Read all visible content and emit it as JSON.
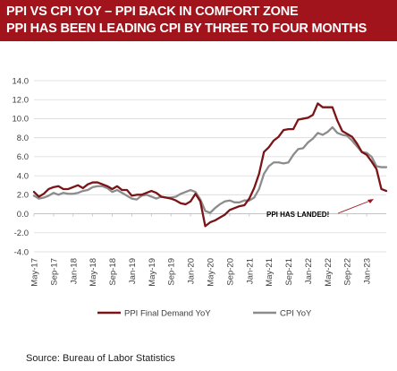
{
  "header": {
    "line1": "PPI VS CPI YOY – PPI BACK IN COMFORT ZONE",
    "line2": "PPI HAS BEEN LEADING CPI BY  THREE TO FOUR MONTHS",
    "bg_color": "#a1141b",
    "text_color": "#ffffff"
  },
  "source": "Source:  Bureau of Labor Statistics",
  "chart_data": {
    "type": "line",
    "title": "PPI VS CPI YOY – PPI BACK IN COMFORT ZONE",
    "ylim": [
      -4.0,
      14.0
    ],
    "yticks": [
      "-4.0",
      "-2.0",
      "0.0",
      "2.0",
      "4.0",
      "6.0",
      "8.0",
      "10.0",
      "12.0",
      "14.0"
    ],
    "xticks": [
      "May-17",
      "Sep-17",
      "Jan-18",
      "May-18",
      "Sep-18",
      "Jan-19",
      "May-19",
      "Sep-19",
      "Jan-20",
      "May-20",
      "Sep-20",
      "Jan-21",
      "May-21",
      "Sep-21",
      "Jan-22",
      "May-22",
      "Sep-22",
      "Jan-23"
    ],
    "x_start": "May-17",
    "x_end": "Jun-23",
    "grid": true,
    "legend_position": "bottom",
    "series": [
      {
        "name": "PPI Final Demand YoY",
        "color": "#7b1416",
        "values": [
          2.3,
          1.8,
          2.1,
          2.6,
          2.8,
          2.9,
          2.6,
          2.6,
          2.8,
          3.0,
          2.7,
          3.1,
          3.3,
          3.3,
          3.1,
          2.9,
          2.6,
          2.9,
          2.5,
          2.5,
          1.9,
          2.0,
          2.0,
          2.2,
          2.4,
          2.2,
          1.8,
          1.7,
          1.6,
          1.4,
          1.1,
          1.0,
          1.3,
          2.1,
          1.3,
          -1.3,
          -0.9,
          -0.7,
          -0.4,
          -0.1,
          0.4,
          0.6,
          0.8,
          0.9,
          1.6,
          2.7,
          4.2,
          6.5,
          7.0,
          7.7,
          8.1,
          8.8,
          8.9,
          8.9,
          9.9,
          10.0,
          10.1,
          10.4,
          11.6,
          11.2,
          11.2,
          11.2,
          9.8,
          8.7,
          8.4,
          8.1,
          7.4,
          6.5,
          6.2,
          5.5,
          4.7,
          2.6,
          2.4
        ],
        "_months": "monthly May-17 through May-23"
      },
      {
        "name": "CPI YoY",
        "color": "#8c8c8c",
        "values": [
          1.9,
          1.6,
          1.7,
          1.9,
          2.2,
          2.0,
          2.2,
          2.1,
          2.1,
          2.2,
          2.4,
          2.5,
          2.8,
          2.9,
          2.9,
          2.7,
          2.3,
          2.5,
          2.2,
          1.9,
          1.6,
          1.5,
          1.9,
          2.0,
          1.8,
          1.6,
          1.8,
          1.7,
          1.7,
          1.8,
          2.1,
          2.3,
          2.5,
          2.3,
          1.5,
          0.3,
          0.1,
          0.6,
          1.0,
          1.3,
          1.4,
          1.2,
          1.2,
          1.4,
          1.4,
          1.7,
          2.6,
          4.2,
          5.0,
          5.4,
          5.4,
          5.3,
          5.4,
          6.2,
          6.8,
          6.9,
          7.5,
          7.9,
          8.5,
          8.3,
          8.6,
          9.1,
          8.5,
          8.3,
          8.2,
          7.7,
          7.1,
          6.5,
          6.4,
          6.0,
          5.0,
          4.9,
          4.9
        ]
      }
    ],
    "annotations": [
      {
        "text": "PPI HAS LANDED!"
      }
    ]
  }
}
